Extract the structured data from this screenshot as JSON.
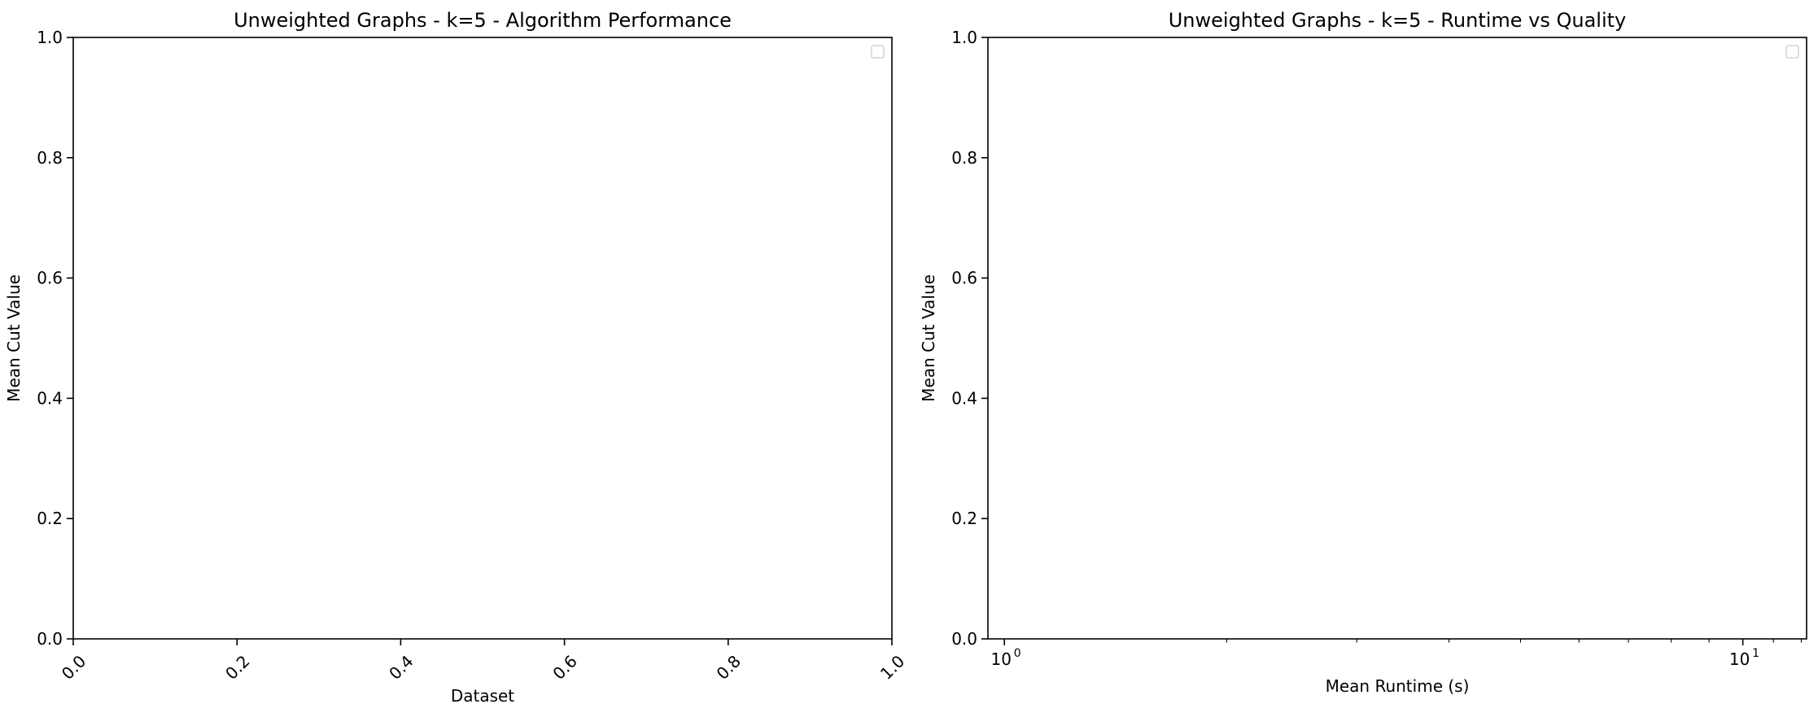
{
  "chart_data": [
    {
      "type": "bar",
      "title": "Unweighted Graphs - k=5 - Algorithm Performance",
      "xlabel": "Dataset",
      "ylabel": "Mean Cut Value",
      "xlim": [
        0.0,
        1.0
      ],
      "ylim": [
        0.0,
        1.0
      ],
      "x_ticks": [
        "0.0",
        "0.2",
        "0.4",
        "0.6",
        "0.8",
        "1.0"
      ],
      "y_ticks": [
        "0.0",
        "0.2",
        "0.4",
        "0.6",
        "0.8",
        "1.0"
      ],
      "x_tick_rotation": 45,
      "series": [],
      "grid": false,
      "legend": "top-right (empty)"
    },
    {
      "type": "scatter",
      "title": "Unweighted Graphs - k=5 - Runtime vs Quality",
      "xlabel": "Mean Runtime (s)",
      "ylabel": "Mean Cut Value",
      "xscale": "log",
      "xlim": [
        0.95,
        12.2
      ],
      "ylim": [
        0.0,
        1.0
      ],
      "x_ticks": [
        {
          "value": 1,
          "base": "10",
          "exp": "0"
        },
        {
          "value": 10,
          "base": "10",
          "exp": "1"
        }
      ],
      "x_minor_ticks": [
        2,
        3,
        4,
        5,
        6,
        7,
        8,
        9,
        11,
        12
      ],
      "y_ticks": [
        "0.0",
        "0.2",
        "0.4",
        "0.6",
        "0.8",
        "1.0"
      ],
      "series": [],
      "grid": false,
      "legend": "top-right (empty)"
    }
  ]
}
